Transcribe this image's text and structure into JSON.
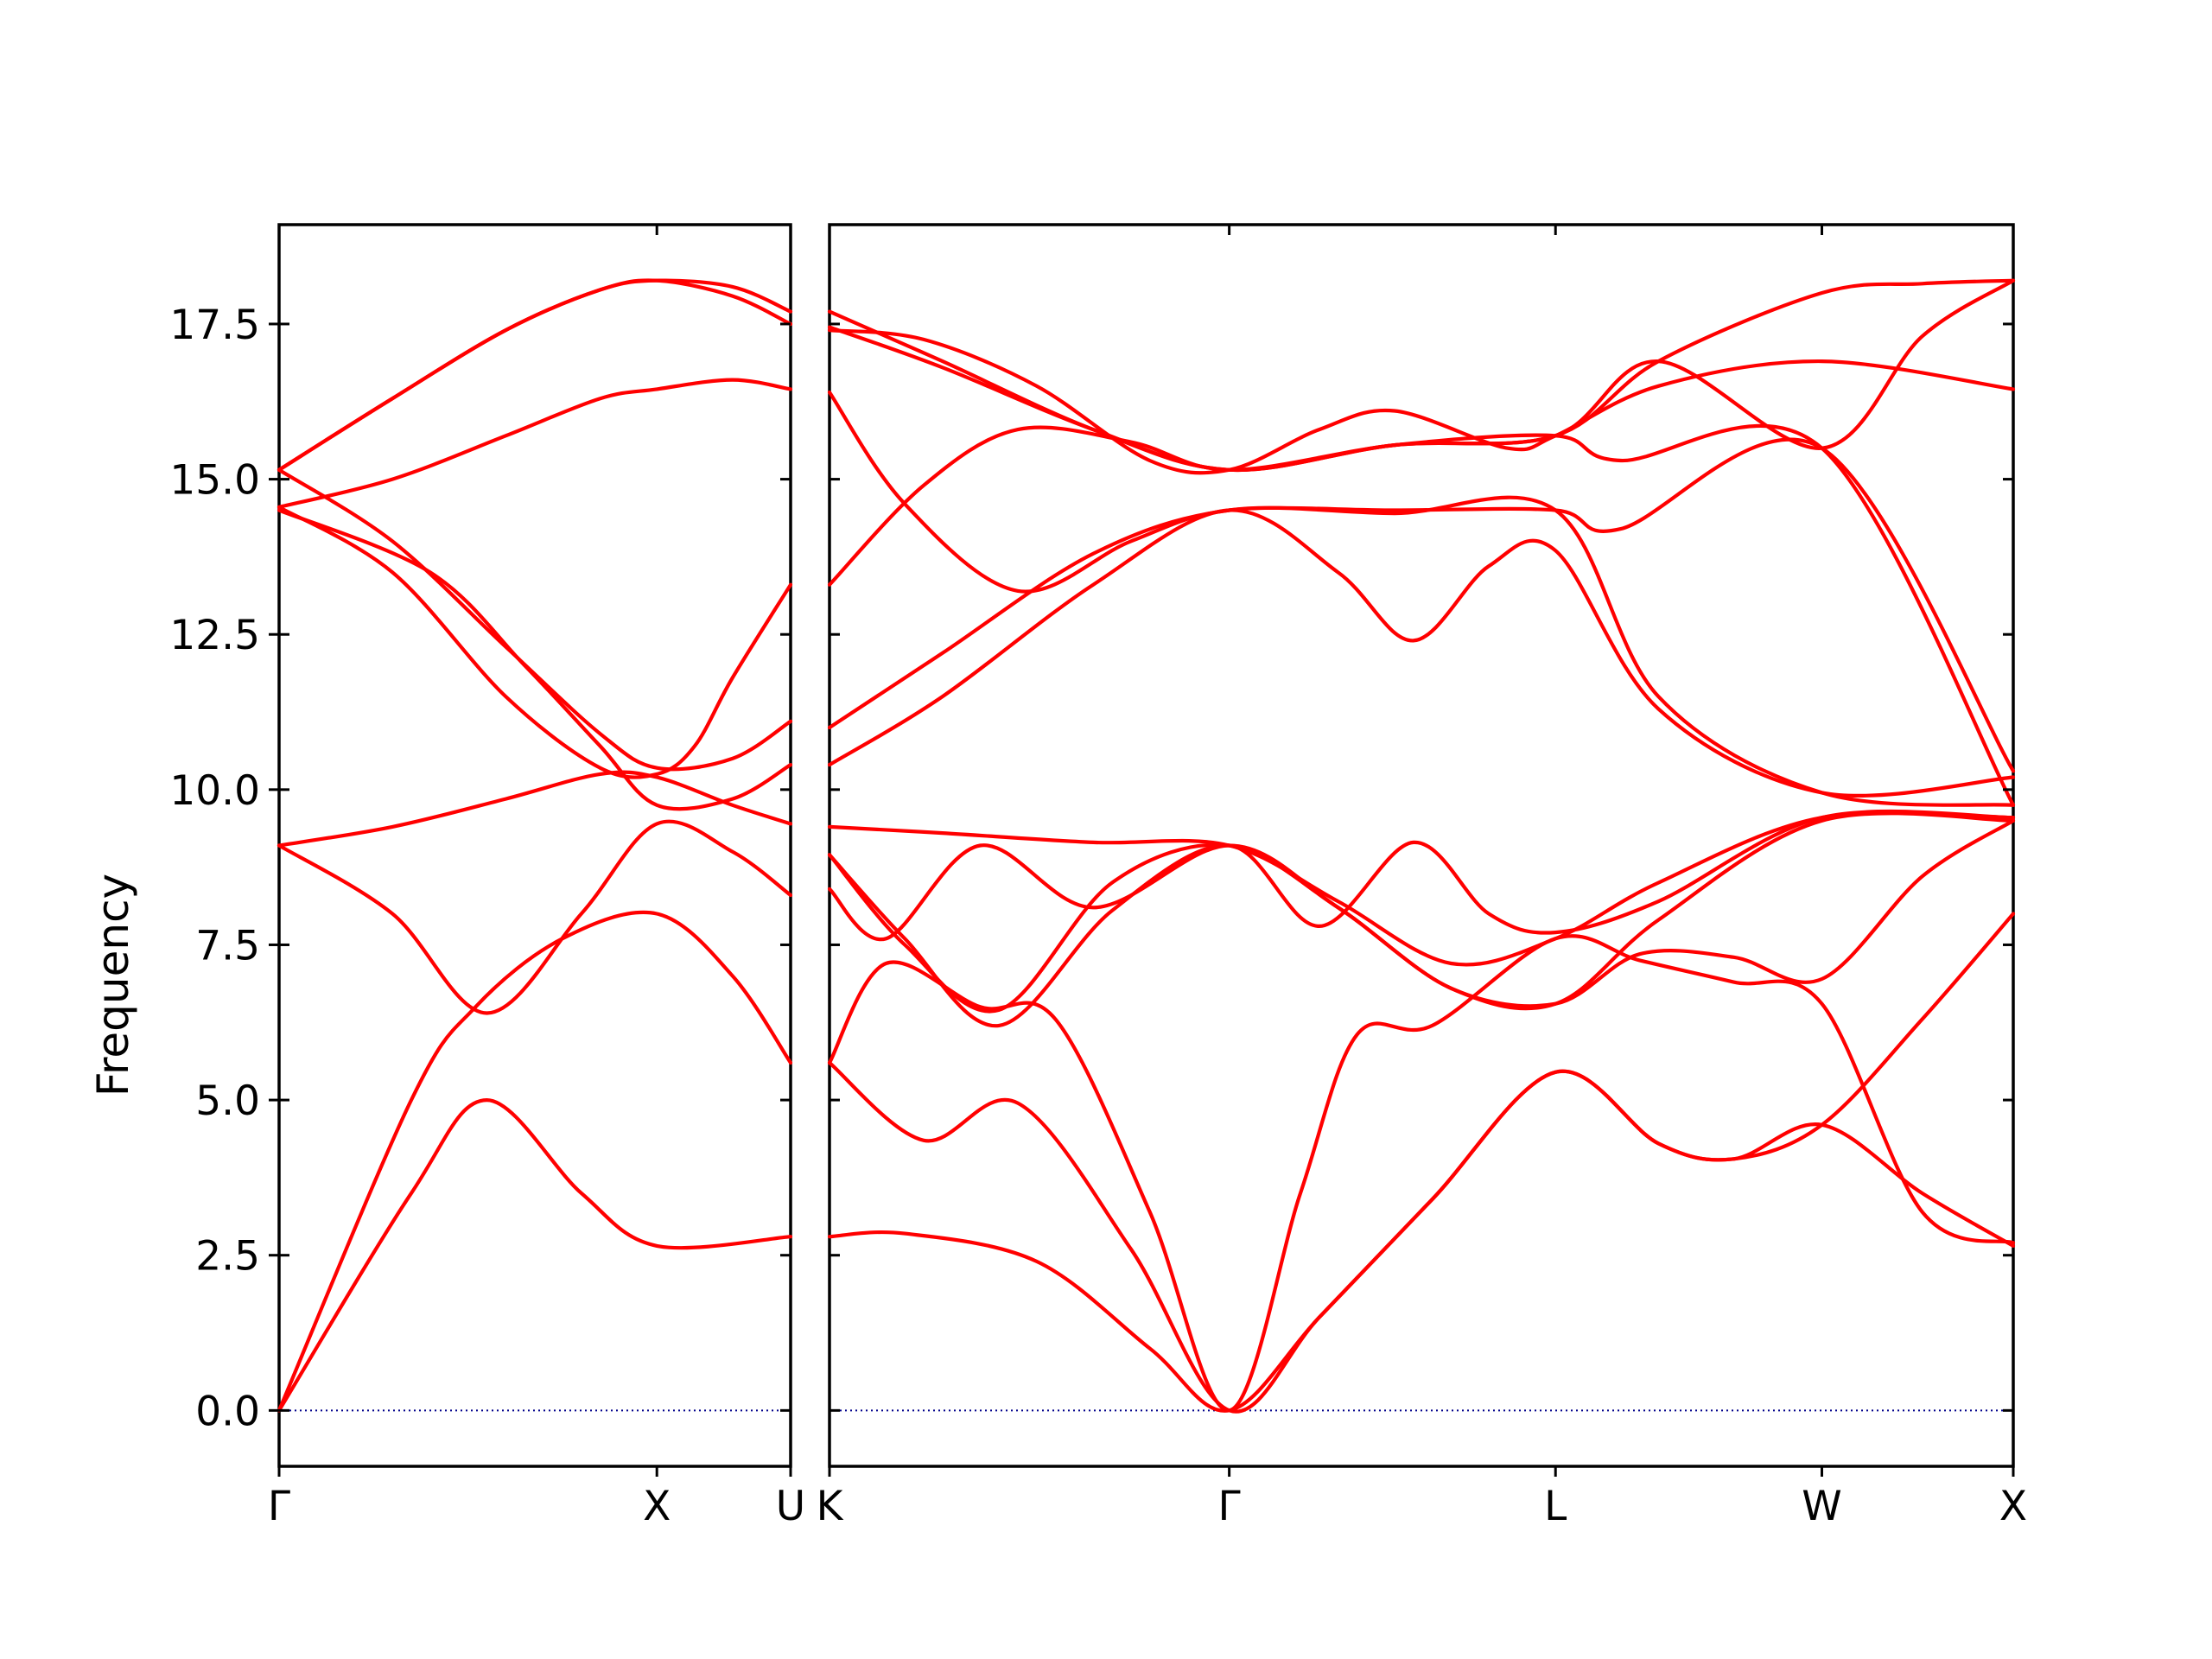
{
  "chart_data": {
    "type": "line",
    "ylabel": "Frequency",
    "ylim": [
      -0.9,
      19.1
    ],
    "y_ticks": [
      "0.0",
      "2.5",
      "5.0",
      "7.5",
      "10.0",
      "12.5",
      "15.0",
      "17.5"
    ],
    "band_color": "#ff0000",
    "zero_line_color": "#00008b",
    "panels": [
      {
        "path": "Γ–X–U",
        "x_ticks": [
          "Γ",
          "X",
          "U"
        ],
        "x_range": [
          0,
          1.354
        ],
        "tick_positions": [
          0,
          1.0,
          1.354
        ],
        "bands": [
          {
            "x": [
              0,
              0.35,
              0.55,
              0.8,
              1.0,
              1.354
            ],
            "y": [
              0,
              3.5,
              5.0,
              3.5,
              2.65,
              2.8
            ]
          },
          {
            "x": [
              0,
              0.35,
              0.52,
              0.75,
              1.0,
              1.2,
              1.354
            ],
            "y": [
              0,
              5.0,
              6.5,
              7.6,
              8.0,
              7.0,
              5.6
            ]
          },
          {
            "x": [
              0,
              0.3,
              0.55,
              0.8,
              1.0,
              1.2,
              1.354
            ],
            "y": [
              9.1,
              8.0,
              6.4,
              8.0,
              9.45,
              9.0,
              8.3
            ]
          },
          {
            "x": [
              0,
              0.3,
              0.6,
              0.85,
              1.0,
              1.2,
              1.354
            ],
            "y": [
              9.1,
              9.4,
              9.85,
              10.25,
              10.2,
              9.75,
              9.45
            ]
          },
          {
            "x": [
              0,
              0.4,
              0.65,
              0.85,
              1.0,
              1.2,
              1.354
            ],
            "y": [
              14.5,
              13.5,
              12.0,
              10.7,
              9.75,
              9.85,
              10.4
            ]
          },
          {
            "x": [
              0,
              0.3,
              0.6,
              0.85,
              1.0,
              1.1,
              1.2,
              1.354
            ],
            "y": [
              14.55,
              13.5,
              11.5,
              10.35,
              10.25,
              10.7,
              11.8,
              13.3
            ]
          },
          {
            "x": [
              0,
              0.3,
              0.6,
              0.85,
              1.0,
              1.2,
              1.354
            ],
            "y": [
              15.15,
              14.0,
              12.3,
              10.9,
              10.35,
              10.5,
              11.1
            ]
          },
          {
            "x": [
              0,
              0.3,
              0.6,
              0.85,
              1.0,
              1.2,
              1.354
            ],
            "y": [
              14.55,
              15.0,
              15.7,
              16.3,
              16.45,
              16.6,
              16.45
            ]
          },
          {
            "x": [
              0,
              0.3,
              0.6,
              0.85,
              1.0,
              1.2,
              1.354
            ],
            "y": [
              15.15,
              16.3,
              17.4,
              18.05,
              18.2,
              17.95,
              17.5
            ]
          },
          {
            "x": [
              0,
              0.3,
              0.6,
              0.85,
              1.0,
              1.2,
              1.354
            ],
            "y": [
              15.15,
              16.3,
              17.4,
              18.05,
              18.2,
              18.1,
              17.7
            ]
          }
        ]
      },
      {
        "path": "K–Γ–L–W–X",
        "x_ticks": [
          "K",
          "Γ",
          "L",
          "W",
          "X"
        ],
        "x_range": [
          0,
          3.142
        ],
        "tick_positions": [
          0,
          1.061,
          1.927,
          2.634,
          3.142
        ],
        "bands": [
          {
            "x": [
              0,
              0.2,
              0.55,
              0.85,
              1.061,
              1.3,
              1.6,
              1.927,
              2.2,
              2.4,
              2.634,
              2.9,
              3.142
            ],
            "y": [
              2.8,
              2.85,
              2.4,
              1.0,
              0.0,
              1.5,
              3.4,
              5.45,
              4.3,
              4.05,
              4.6,
              3.5,
              2.65
            ]
          },
          {
            "x": [
              0,
              0.25,
              0.5,
              0.8,
              1.061,
              1.3,
              1.6,
              1.927,
              2.2,
              2.4,
              2.634,
              2.9,
              3.142
            ],
            "y": [
              5.6,
              4.35,
              4.95,
              2.6,
              0.0,
              1.5,
              3.4,
              5.45,
              4.3,
              4.05,
              4.6,
              6.3,
              8.0
            ]
          },
          {
            "x": [
              0,
              0.15,
              0.4,
              0.6,
              0.85,
              1.061,
              1.25,
              1.4,
              1.6,
              1.927,
              2.15,
              2.4,
              2.634,
              2.9,
              3.142
            ],
            "y": [
              5.6,
              7.2,
              6.5,
              6.3,
              3.2,
              0.0,
              3.5,
              6.05,
              6.2,
              7.6,
              7.25,
              6.9,
              6.55,
              3.2,
              2.7
            ]
          },
          {
            "x": [
              0,
              0.2,
              0.45,
              0.75,
              1.061,
              1.35,
              1.65,
              1.927,
              2.15,
              2.4,
              2.634,
              2.9,
              3.142
            ],
            "y": [
              8.95,
              7.5,
              6.45,
              8.5,
              9.1,
              8.1,
              6.8,
              6.55,
              7.35,
              7.3,
              6.95,
              8.6,
              9.5
            ]
          },
          {
            "x": [
              0,
              0.15,
              0.4,
              0.7,
              1.061,
              1.35,
              1.65,
              1.927,
              2.2,
              2.634,
              3.142
            ],
            "y": [
              8.4,
              7.6,
              9.1,
              8.1,
              9.1,
              8.1,
              6.8,
              6.55,
              7.9,
              9.5,
              9.5
            ]
          },
          {
            "x": [
              0,
              0.2,
              0.45,
              0.75,
              1.061,
              1.3,
              1.55,
              1.75,
              1.927,
              2.2,
              2.634,
              3.142
            ],
            "y": [
              8.95,
              7.6,
              6.2,
              8.05,
              9.1,
              7.8,
              9.15,
              8.0,
              7.7,
              8.2,
              9.55,
              9.55
            ]
          },
          {
            "x": [
              0,
              0.3,
              0.7,
              1.061,
              1.35,
              1.65,
              1.927,
              2.2,
              2.634,
              3.142
            ],
            "y": [
              9.4,
              9.3,
              9.15,
              9.1,
              8.2,
              7.2,
              7.6,
              8.5,
              9.55,
              9.55
            ]
          },
          {
            "x": [
              0,
              0.3,
              0.7,
              1.061,
              1.35,
              1.55,
              1.75,
              1.927,
              2.2,
              2.634,
              3.142
            ],
            "y": [
              10.4,
              11.5,
              13.3,
              14.5,
              13.5,
              12.4,
              13.6,
              13.85,
              11.3,
              9.95,
              10.2
            ]
          },
          {
            "x": [
              0,
              0.3,
              0.7,
              1.061,
              1.5,
              1.927,
              2.2,
              2.634,
              3.142
            ],
            "y": [
              11.0,
              12.2,
              13.8,
              14.5,
              14.45,
              14.5,
              11.5,
              9.95,
              9.75
            ]
          },
          {
            "x": [
              0,
              0.25,
              0.5,
              0.8,
              1.061,
              1.5,
              1.927,
              2.1,
              2.634,
              3.142
            ],
            "y": [
              13.3,
              14.9,
              15.8,
              15.6,
              15.15,
              15.55,
              15.7,
              15.3,
              15.5,
              9.75
            ]
          },
          {
            "x": [
              0,
              0.2,
              0.5,
              0.8,
              1.061,
              1.5,
              1.927,
              2.1,
              2.634,
              3.142
            ],
            "y": [
              16.4,
              14.6,
              13.2,
              14.0,
              14.5,
              14.5,
              14.5,
              14.2,
              15.5,
              10.3
            ]
          },
          {
            "x": [
              0,
              0.25,
              0.55,
              0.85,
              1.061,
              1.3,
              1.5,
              1.8,
              1.927,
              2.2,
              2.634,
              3.142
            ],
            "y": [
              17.4,
              17.25,
              16.5,
              15.3,
              15.15,
              15.8,
              16.1,
              15.5,
              15.7,
              16.5,
              16.9,
              16.45
            ]
          },
          {
            "x": [
              0,
              0.3,
              0.7,
              1.061,
              1.5,
              1.927,
              2.2,
              2.634,
              2.9,
              3.142
            ],
            "y": [
              17.7,
              16.9,
              15.8,
              15.15,
              15.55,
              15.7,
              16.9,
              18.0,
              18.15,
              18.2
            ]
          },
          {
            "x": [
              0,
              0.3,
              0.7,
              1.061,
              1.5,
              1.927,
              2.2,
              2.634,
              2.9,
              3.142
            ],
            "y": [
              17.45,
              16.8,
              15.8,
              15.15,
              15.55,
              15.7,
              16.9,
              15.5,
              17.3,
              18.2
            ]
          }
        ]
      }
    ]
  }
}
